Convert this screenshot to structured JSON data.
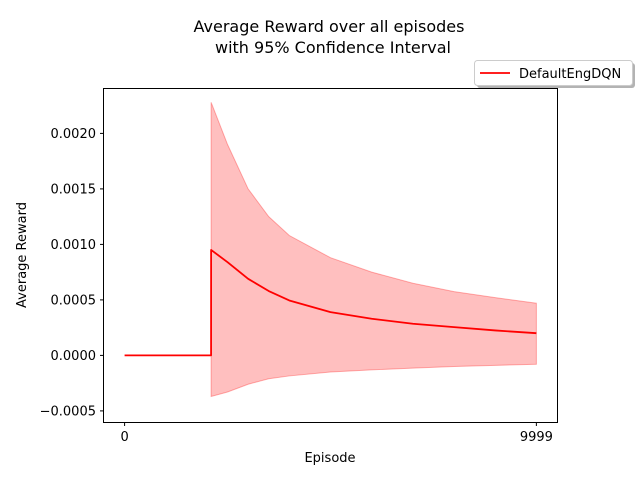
{
  "chart_data": {
    "type": "line",
    "title": "Average Reward over all episodes",
    "subtitle": "with 95% Confidence Interval",
    "xlabel": "Episode",
    "ylabel": "Average Reward",
    "xlim": [
      -500,
      10500
    ],
    "ylim": [
      -0.0006,
      0.0024
    ],
    "x_ticks": [
      0,
      9999
    ],
    "x_tick_labels": [
      "0",
      "9999"
    ],
    "y_ticks": [
      -0.0005,
      0,
      0.0005,
      0.001,
      0.0015,
      0.002
    ],
    "y_tick_labels": [
      "−0.0005",
      "0.0000",
      "0.0005",
      "0.0010",
      "0.0015",
      "0.0020"
    ],
    "grid": false,
    "legend_placement": "upper-right outside axes",
    "series": [
      {
        "name": "DefaultEngDQN",
        "color": "#ff0000",
        "band_color": "#ff0000",
        "x": [
          0,
          2100,
          2101,
          2500,
          3000,
          3500,
          4000,
          5000,
          6000,
          7000,
          8000,
          9000,
          9999
        ],
        "y": [
          0,
          0,
          0.00095,
          0.00084,
          0.00069,
          0.00058,
          0.000495,
          0.00039,
          0.00033,
          0.000285,
          0.000255,
          0.000225,
          0.0002
        ],
        "lower": [
          0,
          0,
          -0.00037,
          -0.00033,
          -0.00026,
          -0.00021,
          -0.000185,
          -0.00015,
          -0.00013,
          -0.000115,
          -0.0001,
          -9e-05,
          -8e-05
        ],
        "upper": [
          0,
          0,
          0.00228,
          0.0019,
          0.0015,
          0.00125,
          0.00108,
          0.00088,
          0.00075,
          0.00065,
          0.000575,
          0.00052,
          0.00047
        ]
      }
    ]
  }
}
